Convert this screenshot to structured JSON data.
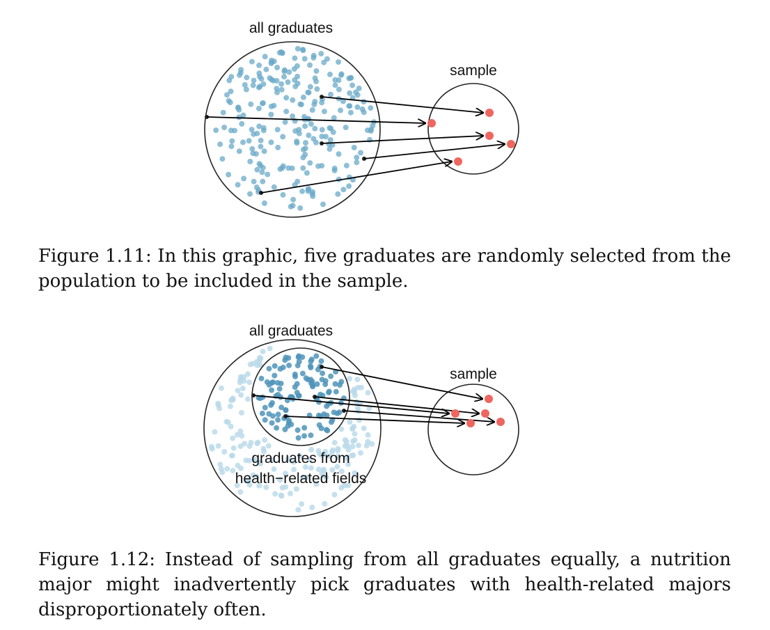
{
  "figure1": {
    "population_label": "all graduates",
    "sample_label": "sample",
    "caption": "Figure 1.11: In this graphic, five graduates are randomly selected from the population to be included in the sample.",
    "sampled_count": 5
  },
  "figure2": {
    "population_label": "all graduates",
    "subgroup_label_line1": "graduates from",
    "subgroup_label_line2": "health−related fields",
    "sample_label": "sample",
    "caption": "Figure 1.12: Instead of sampling from all graduates equally, a nutrition major might inadvertently pick graduates with health-related majors disproportionately often.",
    "sampled_count": 5
  },
  "colors": {
    "population_dot": "#6aaac8",
    "population_dot_faded": "#b8d8e8",
    "subgroup_dot": "#4f94ba",
    "sample_dot": "#ef6660",
    "outline": "#222222",
    "arrow": "#000000"
  }
}
